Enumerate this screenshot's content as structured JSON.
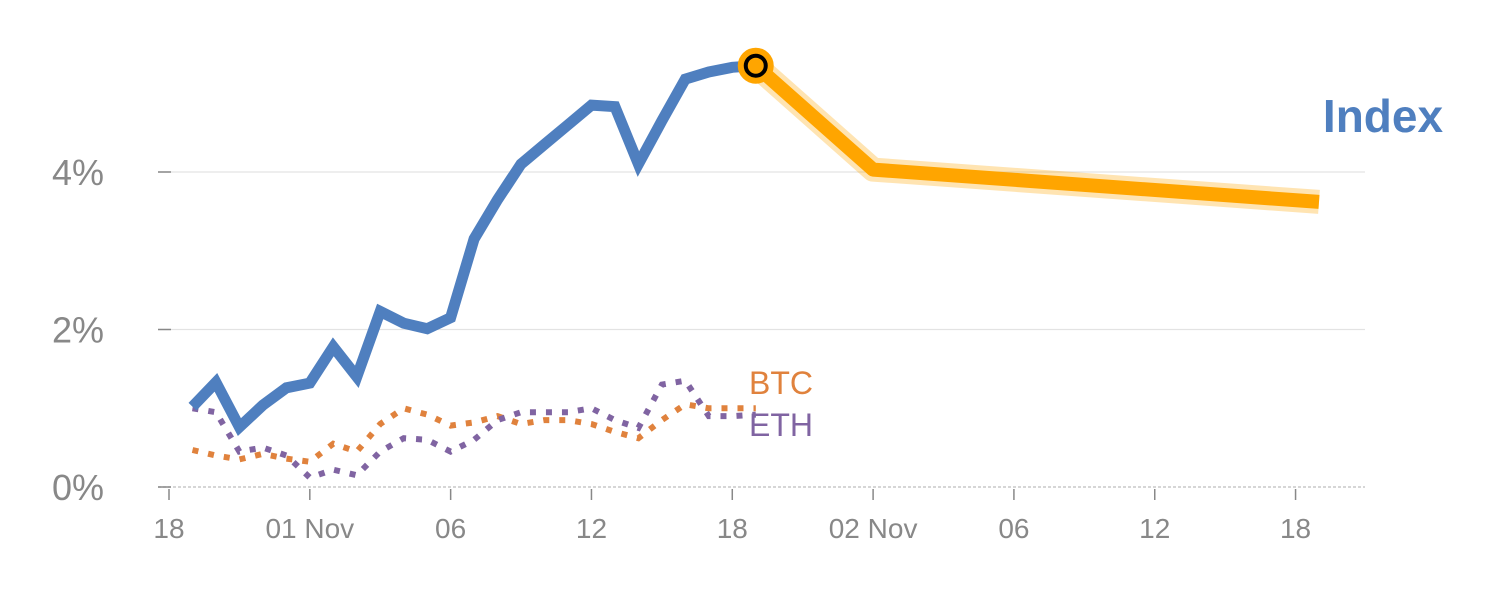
{
  "chart_data": {
    "type": "line",
    "title": "",
    "xlabel": "",
    "ylabel": "",
    "ylim": [
      0,
      6
    ],
    "y_ticks": [
      {
        "value": 0,
        "label": "0%"
      },
      {
        "value": 2,
        "label": "2%"
      },
      {
        "value": 4,
        "label": "4%"
      }
    ],
    "x_ticks": [
      {
        "index": 0,
        "label": "18"
      },
      {
        "index": 6,
        "label": "01 Nov"
      },
      {
        "index": 12,
        "label": "06"
      },
      {
        "index": 18,
        "label": "12"
      },
      {
        "index": 24,
        "label": "18"
      },
      {
        "index": 30,
        "label": "02 Nov"
      },
      {
        "index": 36,
        "label": "06"
      },
      {
        "index": 42,
        "label": "12"
      },
      {
        "index": 48,
        "label": "18"
      }
    ],
    "grid": true,
    "series": [
      {
        "name": "Index",
        "label": "Index",
        "color": "#4f7fbf",
        "style": "solid",
        "start_index": 1,
        "values": [
          1.02,
          1.33,
          0.76,
          1.04,
          1.26,
          1.32,
          1.78,
          1.4,
          2.23,
          2.08,
          2.01,
          2.15,
          3.15,
          3.65,
          4.1,
          4.35,
          4.6,
          4.85,
          4.83,
          4.1,
          4.65,
          5.18,
          5.27,
          5.33,
          5.35
        ]
      },
      {
        "name": "Index forecast",
        "color": "#ffa500",
        "style": "thick",
        "points": [
          [
            25,
            5.35
          ],
          [
            30,
            4.03
          ],
          [
            49,
            3.62
          ]
        ]
      },
      {
        "name": "BTC",
        "label": "BTC",
        "color": "#e0823d",
        "style": "dotted",
        "start_index": 1,
        "values": [
          0.47,
          0.4,
          0.35,
          0.42,
          0.36,
          0.32,
          0.55,
          0.45,
          0.8,
          1.0,
          0.92,
          0.78,
          0.82,
          0.9,
          0.8,
          0.85,
          0.85,
          0.8,
          0.7,
          0.62,
          0.85,
          1.05,
          1.0,
          1.0,
          1.0
        ]
      },
      {
        "name": "ETH",
        "label": "ETH",
        "color": "#8064a2",
        "style": "dotted",
        "start_index": 1,
        "values": [
          1.0,
          0.95,
          0.45,
          0.5,
          0.4,
          0.12,
          0.22,
          0.15,
          0.45,
          0.62,
          0.6,
          0.45,
          0.6,
          0.85,
          0.95,
          0.95,
          0.95,
          1.0,
          0.85,
          0.75,
          1.3,
          1.35,
          0.9,
          0.9,
          0.92
        ]
      }
    ],
    "highlight_point": {
      "series": "Index",
      "index": 25,
      "value": 5.35
    }
  }
}
